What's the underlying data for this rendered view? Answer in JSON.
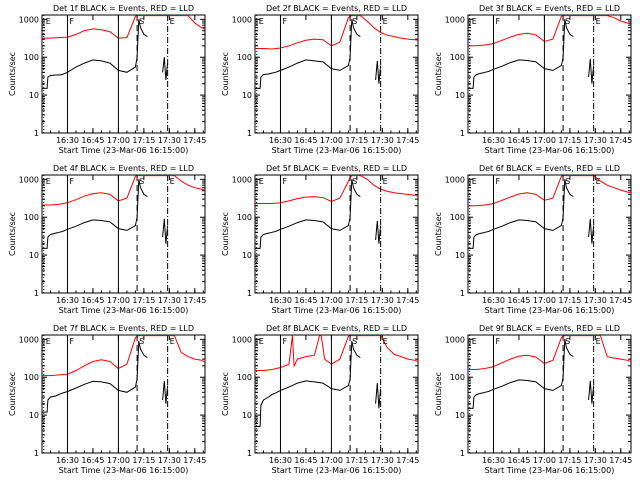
{
  "colors": {
    "events": "#000000",
    "lld": "#ff0000",
    "axis": "#000000"
  },
  "common": {
    "type": "line",
    "xlabel": "Start Time (23-Mar-06 16:15:00)",
    "ylabel": "Counts/sec",
    "x_ticks": [
      "16:30",
      "16:45",
      "17:00",
      "17:15",
      "17:30",
      "17:45"
    ],
    "x_tick_minutes": [
      15,
      30,
      45,
      60,
      75,
      90
    ],
    "y_ticks": [
      "1",
      "10",
      "100",
      "1000"
    ],
    "y_tick_values": [
      1,
      10,
      100,
      1000
    ],
    "yscale": "log",
    "xlim_minutes": [
      0,
      96
    ],
    "ylim": [
      1,
      1300
    ],
    "markers": [
      {
        "minute": 1,
        "label": "E",
        "style": "dotted"
      },
      {
        "minute": 15,
        "label": "F",
        "style": "solid"
      },
      {
        "minute": 45,
        "label": "",
        "style": "solid"
      },
      {
        "minute": 56,
        "label": "S",
        "style": "dashed"
      },
      {
        "minute": 74,
        "label": "E",
        "style": "dashdot"
      }
    ]
  },
  "chart_data": [
    {
      "title": "Det 1f BLACK = Events, RED = LLD",
      "series": [
        {
          "x": [
            0,
            5,
            10,
            15,
            20,
            25,
            30,
            35,
            40,
            45,
            50,
            55,
            56,
            57,
            58,
            62,
            66,
            70,
            74,
            78,
            82,
            86,
            90,
            94,
            96
          ],
          "values": [
            320,
            320,
            330,
            340,
            400,
            500,
            560,
            530,
            470,
            320,
            330,
            1200,
            1250,
            1250,
            1250,
            1250,
            1250,
            1250,
            1250,
            1250,
            1250,
            1250,
            800,
            600,
            560
          ]
        },
        {
          "x": [
            0,
            3,
            3.5,
            5,
            8,
            10,
            12,
            15,
            20,
            25,
            30,
            35,
            40,
            45,
            50,
            55,
            56,
            57,
            58,
            60,
            62
          ],
          "values": [
            15,
            15,
            30,
            33,
            34,
            34,
            35,
            40,
            55,
            70,
            85,
            80,
            70,
            45,
            40,
            55,
            100,
            1000,
            600,
            400,
            350
          ]
        },
        {
          "x": [
            71,
            72,
            73,
            74
          ],
          "values": [
            40,
            100,
            25,
            70
          ]
        }
      ]
    },
    {
      "title": "Det 2f BLACK = Events, RED = LLD",
      "series": [
        {
          "x": [
            0,
            5,
            10,
            15,
            20,
            25,
            30,
            35,
            40,
            45,
            50,
            55,
            56,
            57,
            58,
            62,
            66,
            70,
            74,
            78,
            82,
            86,
            90,
            94,
            96
          ],
          "values": [
            170,
            170,
            165,
            175,
            200,
            240,
            280,
            300,
            290,
            200,
            250,
            1100,
            1200,
            1250,
            1250,
            1250,
            900,
            600,
            450,
            380,
            350,
            320,
            300,
            290,
            280
          ]
        },
        {
          "x": [
            0,
            3,
            3.5,
            5,
            8,
            10,
            12,
            15,
            20,
            25,
            30,
            35,
            40,
            45,
            50,
            55,
            56,
            57,
            58,
            60,
            62
          ],
          "values": [
            15,
            15,
            30,
            35,
            36,
            38,
            40,
            45,
            55,
            70,
            85,
            80,
            75,
            50,
            45,
            60,
            100,
            1000,
            600,
            400,
            350
          ]
        },
        {
          "x": [
            71,
            72,
            73,
            74
          ],
          "values": [
            25,
            80,
            20,
            60
          ]
        }
      ]
    },
    {
      "title": "Det 3f BLACK = Events, RED = LLD",
      "series": [
        {
          "x": [
            0,
            5,
            10,
            15,
            20,
            25,
            30,
            35,
            40,
            45,
            50,
            55,
            56,
            57,
            58,
            62,
            66,
            70,
            74,
            78,
            82,
            86,
            90,
            94,
            96
          ],
          "values": [
            200,
            200,
            210,
            230,
            280,
            340,
            400,
            430,
            390,
            260,
            300,
            1200,
            1250,
            1250,
            1250,
            1250,
            1250,
            1250,
            1250,
            1250,
            1250,
            1100,
            900,
            800,
            750
          ]
        },
        {
          "x": [
            0,
            3,
            3.5,
            5,
            8,
            10,
            12,
            15,
            20,
            25,
            30,
            35,
            40,
            45,
            50,
            55,
            56,
            57,
            58,
            60,
            62
          ],
          "values": [
            15,
            15,
            30,
            35,
            38,
            40,
            42,
            48,
            58,
            72,
            85,
            82,
            75,
            50,
            45,
            60,
            100,
            1000,
            600,
            400,
            350
          ]
        },
        {
          "x": [
            71,
            72,
            73,
            74
          ],
          "values": [
            30,
            90,
            20,
            60
          ]
        }
      ]
    },
    {
      "title": "Det 4f BLACK = Events, RED = LLD",
      "series": [
        {
          "x": [
            0,
            5,
            10,
            15,
            20,
            25,
            30,
            35,
            40,
            45,
            50,
            55,
            56,
            57,
            58,
            62,
            66,
            70,
            74,
            78,
            82,
            86,
            90,
            94,
            96
          ],
          "values": [
            210,
            210,
            220,
            240,
            290,
            360,
            420,
            440,
            400,
            270,
            320,
            1200,
            1250,
            1250,
            1250,
            1250,
            1250,
            1250,
            1250,
            1250,
            900,
            700,
            600,
            550,
            520
          ]
        },
        {
          "x": [
            0,
            3,
            3.5,
            5,
            8,
            10,
            12,
            15,
            20,
            25,
            30,
            35,
            40,
            45,
            50,
            55,
            56,
            57,
            58,
            60,
            62
          ],
          "values": [
            15,
            15,
            30,
            35,
            38,
            40,
            42,
            48,
            58,
            72,
            85,
            82,
            75,
            50,
            45,
            60,
            100,
            1000,
            600,
            400,
            350
          ]
        },
        {
          "x": [
            71,
            72,
            73,
            74
          ],
          "values": [
            30,
            90,
            20,
            60
          ]
        }
      ]
    },
    {
      "title": "Det 5f BLACK = Events, RED = LLD",
      "series": [
        {
          "x": [
            0,
            5,
            10,
            15,
            20,
            25,
            30,
            35,
            40,
            45,
            50,
            55,
            56,
            57,
            58,
            62,
            66,
            70,
            74,
            78,
            82,
            86,
            90,
            94,
            96
          ],
          "values": [
            230,
            230,
            230,
            240,
            270,
            310,
            340,
            350,
            330,
            260,
            320,
            900,
            1100,
            1250,
            1250,
            1250,
            1000,
            700,
            550,
            480,
            440,
            420,
            400,
            380,
            360
          ]
        },
        {
          "x": [
            0,
            3,
            3.5,
            5,
            8,
            10,
            12,
            15,
            20,
            25,
            30,
            35,
            40,
            45,
            50,
            55,
            56,
            57,
            58,
            60,
            62
          ],
          "values": [
            15,
            15,
            30,
            35,
            38,
            40,
            42,
            48,
            58,
            72,
            85,
            82,
            75,
            50,
            45,
            60,
            100,
            1000,
            600,
            400,
            350
          ]
        },
        {
          "x": [
            71,
            72,
            73,
            74
          ],
          "values": [
            25,
            80,
            20,
            60
          ]
        }
      ]
    },
    {
      "title": "Det 6f BLACK = Events, RED = LLD",
      "series": [
        {
          "x": [
            0,
            5,
            10,
            15,
            20,
            25,
            30,
            35,
            40,
            45,
            50,
            55,
            56,
            57,
            58,
            62,
            66,
            70,
            74,
            78,
            82,
            86,
            90,
            94,
            96
          ],
          "values": [
            200,
            200,
            210,
            230,
            280,
            340,
            410,
            440,
            400,
            280,
            320,
            1200,
            1250,
            1250,
            1250,
            1250,
            1250,
            1250,
            1250,
            900,
            700,
            600,
            520,
            460,
            440
          ]
        },
        {
          "x": [
            0,
            3,
            3.5,
            5,
            8,
            10,
            12,
            15,
            20,
            25,
            30,
            35,
            40,
            45,
            50,
            55,
            56,
            57,
            58,
            60,
            62
          ],
          "values": [
            15,
            15,
            30,
            35,
            38,
            40,
            42,
            48,
            58,
            72,
            85,
            82,
            75,
            50,
            45,
            60,
            100,
            1000,
            600,
            400,
            350
          ]
        },
        {
          "x": [
            71,
            72,
            73,
            74
          ],
          "values": [
            30,
            90,
            20,
            60
          ]
        }
      ]
    },
    {
      "title": "Det 7f BLACK = Events, RED = LLD",
      "series": [
        {
          "x": [
            0,
            5,
            10,
            15,
            20,
            25,
            30,
            35,
            40,
            45,
            50,
            55,
            56,
            57,
            58,
            62,
            66,
            70,
            74,
            78,
            82,
            86,
            90,
            94,
            96
          ],
          "values": [
            110,
            110,
            115,
            120,
            150,
            200,
            260,
            290,
            260,
            170,
            220,
            1100,
            1200,
            1250,
            1250,
            1250,
            1250,
            1250,
            1250,
            1250,
            450,
            350,
            300,
            280,
            250
          ]
        },
        {
          "x": [
            0,
            3,
            3.5,
            5,
            8,
            10,
            12,
            15,
            20,
            25,
            30,
            35,
            40,
            45,
            50,
            55,
            56,
            57,
            58,
            60,
            62
          ],
          "values": [
            12,
            12,
            25,
            30,
            32,
            35,
            38,
            42,
            52,
            65,
            78,
            75,
            68,
            45,
            40,
            55,
            90,
            900,
            550,
            380,
            330
          ]
        },
        {
          "x": [
            71,
            72,
            73,
            74
          ],
          "values": [
            25,
            80,
            20,
            60
          ]
        }
      ]
    },
    {
      "title": "Det 8f BLACK = Events, RED = LLD",
      "series": [
        {
          "x": [
            0,
            5,
            10,
            15,
            20,
            22,
            23,
            25,
            30,
            35,
            38,
            39,
            41,
            45,
            50,
            55,
            56,
            57,
            58,
            62,
            66,
            70,
            74,
            78,
            82,
            86,
            90,
            94,
            96
          ],
          "values": [
            150,
            150,
            160,
            180,
            220,
            1250,
            200,
            300,
            350,
            380,
            1250,
            1250,
            300,
            220,
            300,
            1200,
            1250,
            1250,
            1250,
            1250,
            1250,
            1250,
            1250,
            600,
            400,
            350,
            300,
            280,
            260
          ]
        },
        {
          "x": [
            0,
            3,
            3.5,
            5,
            8,
            10,
            12,
            15,
            20,
            25,
            30,
            35,
            40,
            45,
            50,
            55,
            56,
            57,
            58,
            60,
            62
          ],
          "values": [
            5,
            5,
            18,
            25,
            30,
            35,
            38,
            45,
            55,
            70,
            80,
            75,
            70,
            50,
            45,
            60,
            90,
            900,
            550,
            380,
            330
          ]
        },
        {
          "x": [
            71,
            72,
            73,
            74
          ],
          "values": [
            20,
            70,
            15,
            50
          ]
        }
      ]
    },
    {
      "title": "Det 9f BLACK = Events, RED = LLD",
      "series": [
        {
          "x": [
            0,
            5,
            10,
            15,
            20,
            25,
            30,
            35,
            40,
            45,
            50,
            55,
            56,
            57,
            58,
            62,
            66,
            70,
            74,
            78,
            82,
            86,
            90,
            94,
            96
          ],
          "values": [
            160,
            160,
            170,
            190,
            240,
            300,
            360,
            380,
            340,
            230,
            280,
            1100,
            1200,
            1250,
            1250,
            1250,
            1250,
            1250,
            1250,
            1250,
            350,
            320,
            300,
            280,
            260
          ]
        },
        {
          "x": [
            0,
            3,
            3.5,
            5,
            8,
            10,
            12,
            15,
            20,
            25,
            30,
            35,
            40,
            45,
            50,
            55,
            56,
            57,
            58,
            60,
            62
          ],
          "values": [
            15,
            15,
            30,
            35,
            38,
            40,
            42,
            48,
            58,
            72,
            85,
            82,
            75,
            50,
            45,
            60,
            100,
            1000,
            600,
            400,
            350
          ]
        },
        {
          "x": [
            71,
            72,
            73,
            74
          ],
          "values": [
            25,
            80,
            20,
            60
          ]
        }
      ]
    }
  ]
}
